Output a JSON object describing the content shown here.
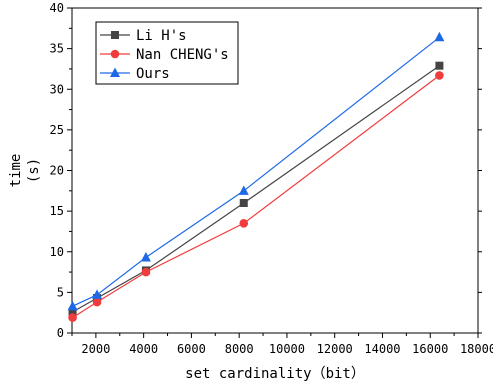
{
  "chart_data": {
    "type": "line",
    "xlabel": "set cardinality（bit）",
    "ylabel_lines": [
      "time",
      "(s)"
    ],
    "xlim": [
      1000,
      18000
    ],
    "ylim": [
      0,
      40
    ],
    "xticks": [
      2000,
      4000,
      6000,
      8000,
      10000,
      12000,
      14000,
      16000,
      18000
    ],
    "yticks": [
      0,
      5,
      10,
      15,
      20,
      25,
      30,
      35,
      40
    ],
    "grid": false,
    "legend_position": "top-left",
    "x": [
      1024,
      2048,
      4096,
      8192,
      16384
    ],
    "series": [
      {
        "name": "Li H's",
        "color": "#444444",
        "marker": "square",
        "values": [
          2.6,
          4.3,
          7.7,
          16.0,
          32.9
        ]
      },
      {
        "name": "Nan CHENG's",
        "color": "#f03c3c",
        "marker": "circle",
        "values": [
          1.9,
          3.8,
          7.5,
          13.5,
          31.7
        ]
      },
      {
        "name": "Ours",
        "color": "#1e6ae6",
        "marker": "triangle",
        "values": [
          3.3,
          4.7,
          9.3,
          17.5,
          36.4
        ]
      }
    ]
  }
}
